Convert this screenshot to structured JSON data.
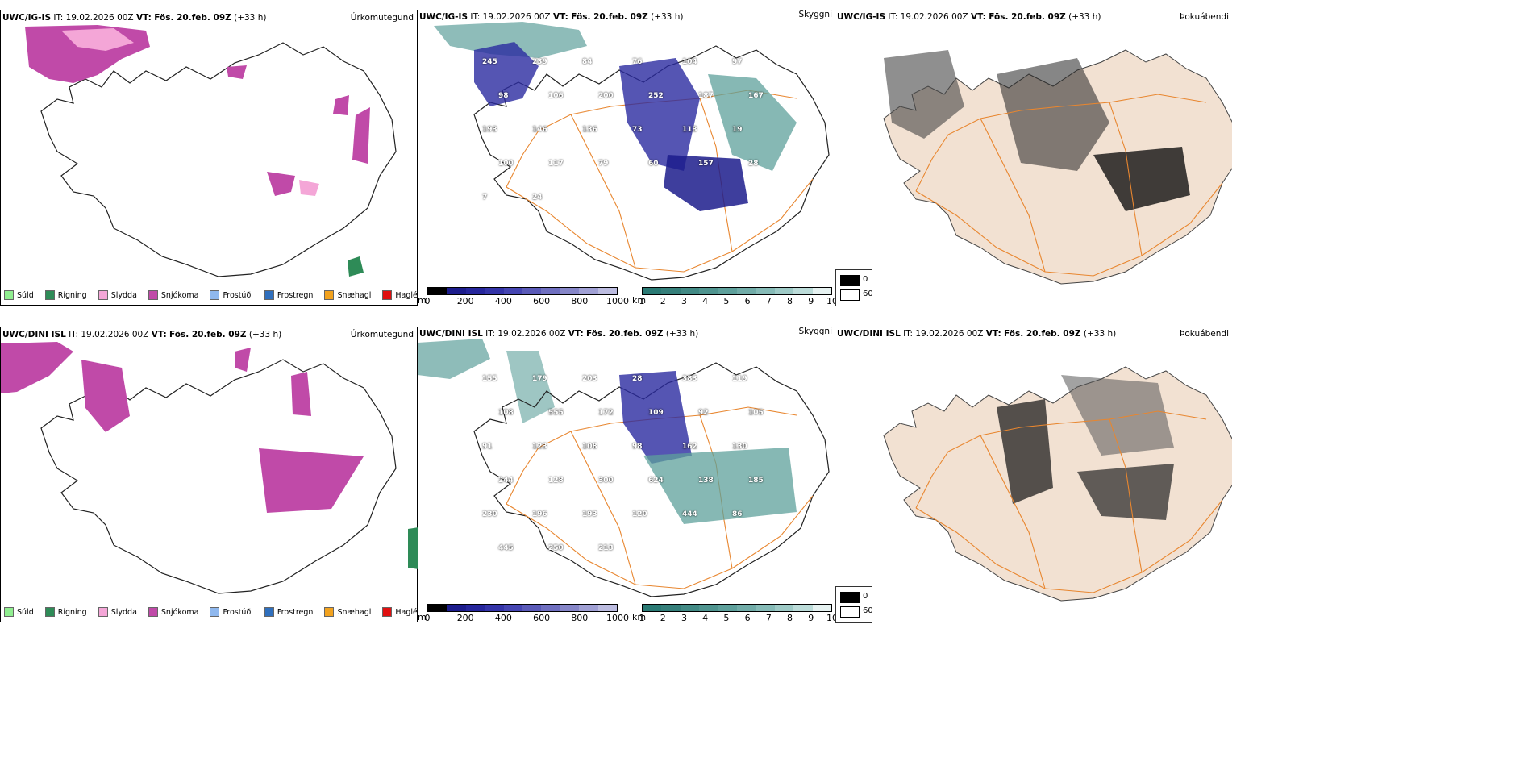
{
  "rows": [
    {
      "model": "UWC/IG-IS",
      "it_label": "IT:",
      "it_value": "19.02.2026 00Z",
      "vt_label": "VT:",
      "vt_value": "Fös. 20.feb. 09Z",
      "lead": "(+33 h)",
      "precip_title": "Úrkomutegund",
      "cloud_title": "Skyggni",
      "fog_title": "Þokuábendi",
      "ceiling_labels": [
        "245",
        "239",
        "84",
        "76",
        "104",
        "97",
        "98",
        "106",
        "200",
        "252",
        "187",
        "167",
        "193",
        "146",
        "136",
        "73",
        "113",
        "19",
        "100",
        "117",
        "79",
        "60",
        "157",
        "28",
        "7",
        "24"
      ]
    },
    {
      "model": "UWC/DINI ISL",
      "it_label": "IT:",
      "it_value": "19.02.2026 00Z",
      "vt_label": "VT:",
      "vt_value": "Fös. 20.feb. 09Z",
      "lead": "(+33 h)",
      "precip_title": "Úrkomutegund",
      "cloud_title": "Skyggni",
      "fog_title": "Þokuábendi",
      "ceiling_labels": [
        "155",
        "179",
        "203",
        "28",
        "383",
        "119",
        "108",
        "555",
        "172",
        "109",
        "92",
        "105",
        "91",
        "123",
        "108",
        "98",
        "162",
        "130",
        "244",
        "128",
        "300",
        "624",
        "138",
        "185",
        "230",
        "196",
        "193",
        "120",
        "444",
        "86",
        "445",
        "250",
        "213"
      ]
    }
  ],
  "ptype_legend": [
    {
      "label": "Súld",
      "color": "#90ee90"
    },
    {
      "label": "Rigning",
      "color": "#2e8b57"
    },
    {
      "label": "Slydda",
      "color": "#f4a6d7"
    },
    {
      "label": "Snjókoma",
      "color": "#c04aa8"
    },
    {
      "label": "Frostúði",
      "color": "#8fb8ee"
    },
    {
      "label": "Frostregn",
      "color": "#2f6fbd"
    },
    {
      "label": "Snæhagl",
      "color": "#f2a21e"
    },
    {
      "label": "Haglél",
      "color": "#e01010"
    }
  ],
  "ceiling_bar": {
    "unit": "m",
    "ticks": [
      "0",
      "200",
      "400",
      "600",
      "800",
      "1000"
    ],
    "colors": [
      "#000000",
      "#1c1c8c",
      "#26269c",
      "#3434a8",
      "#4545b2",
      "#5a5ab8",
      "#6f6fc0",
      "#8686c8",
      "#a0a0d4",
      "#bcbce0"
    ]
  },
  "visibility_bar": {
    "unit": "km",
    "ticks": [
      "1",
      "2",
      "3",
      "4",
      "5",
      "6",
      "7",
      "8",
      "9",
      "10"
    ],
    "colors": [
      "#2a7a74",
      "#357f7a",
      "#428a85",
      "#4f948f",
      "#5ea09b",
      "#71aca8",
      "#86bbb7",
      "#9ecac6",
      "#bcdcd9",
      "#e6f2f1"
    ]
  },
  "fog_legend": [
    {
      "label": "0",
      "color": "#000000"
    },
    {
      "label": "60",
      "color": "#ffffff"
    }
  ]
}
